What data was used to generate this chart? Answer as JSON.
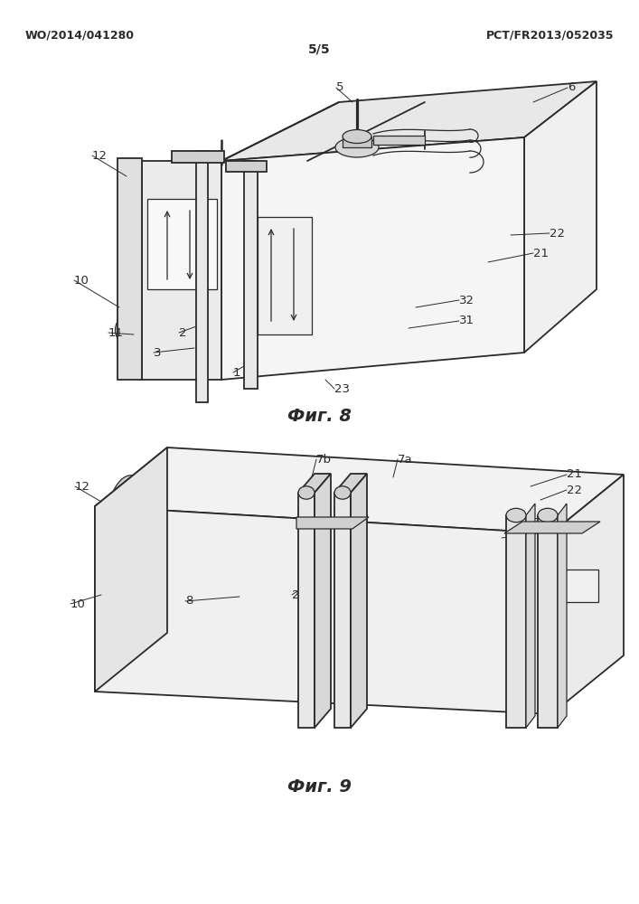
{
  "title_left": "WO/2014/041280",
  "title_right": "PCT/FR2013/052035",
  "page_label": "5/5",
  "fig8_label": "Фиг. 8",
  "fig9_label": "Фиг. 9",
  "bg_color": "#ffffff",
  "line_color": "#2a2a2a",
  "fill_light": "#e8e8e8",
  "fill_mid": "#d0d0d0",
  "fill_dark": "#b0b0b0",
  "label_fontsize": 9.5,
  "header_fontsize": 9,
  "caption_fontsize": 14
}
